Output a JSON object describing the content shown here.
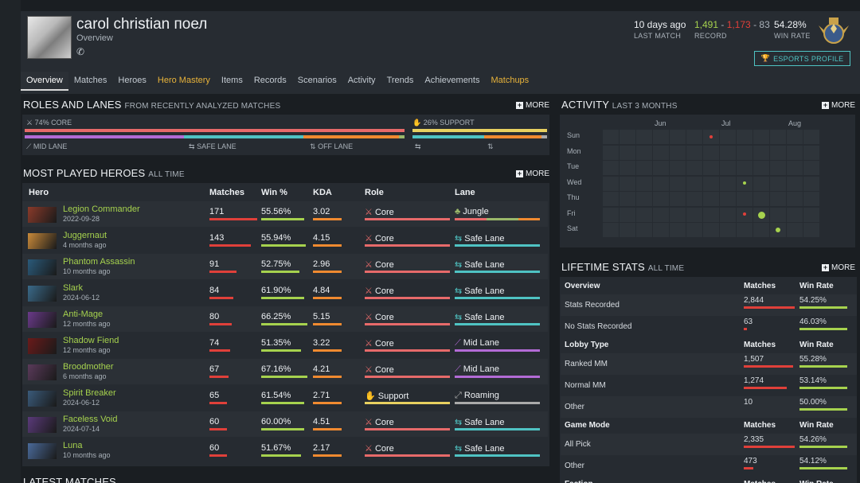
{
  "player": {
    "name": "carol christian поел",
    "subtitle": "Overview"
  },
  "stats": {
    "last_match": {
      "value": "10 days ago",
      "label": "LAST MATCH"
    },
    "record": {
      "wins": "1,491",
      "losses": "1,173",
      "abandons": "83",
      "label": "RECORD"
    },
    "win_rate": {
      "value": "54.28%",
      "label": "WIN RATE"
    }
  },
  "esports_label": "ESPORTS PROFILE",
  "nav": [
    "Overview",
    "Matches",
    "Heroes",
    "Hero Mastery",
    "Items",
    "Records",
    "Scenarios",
    "Activity",
    "Trends",
    "Achievements",
    "Matchups"
  ],
  "roles": {
    "title": "ROLES AND LANES",
    "subtitle": "FROM RECENTLY ANALYZED MATCHES",
    "more": "MORE",
    "core_label": "74% CORE",
    "support_label": "26% SUPPORT",
    "lanes": [
      "MID LANE",
      "SAFE LANE",
      "OFF LANE"
    ]
  },
  "heroes_section": {
    "title": "MOST PLAYED HEROES",
    "subtitle": "ALL TIME",
    "more": "MORE",
    "columns": [
      "Hero",
      "Matches",
      "Win %",
      "KDA",
      "Role",
      "Lane"
    ]
  },
  "heroes": [
    {
      "name": "Legion Commander",
      "sub": "2022-09-28",
      "matches": "171",
      "win": "55.56%",
      "kda": "3.02",
      "role": "Core",
      "lane": "Jungle"
    },
    {
      "name": "Juggernaut",
      "sub": "4 months ago",
      "matches": "143",
      "win": "55.94%",
      "kda": "4.15",
      "role": "Core",
      "lane": "Safe Lane"
    },
    {
      "name": "Phantom Assassin",
      "sub": "10 months ago",
      "matches": "91",
      "win": "52.75%",
      "kda": "2.96",
      "role": "Core",
      "lane": "Safe Lane"
    },
    {
      "name": "Slark",
      "sub": "2024-06-12",
      "matches": "84",
      "win": "61.90%",
      "kda": "4.84",
      "role": "Core",
      "lane": "Safe Lane"
    },
    {
      "name": "Anti-Mage",
      "sub": "12 months ago",
      "matches": "80",
      "win": "66.25%",
      "kda": "5.15",
      "role": "Core",
      "lane": "Safe Lane"
    },
    {
      "name": "Shadow Fiend",
      "sub": "12 months ago",
      "matches": "74",
      "win": "51.35%",
      "kda": "3.22",
      "role": "Core",
      "lane": "Mid Lane"
    },
    {
      "name": "Broodmother",
      "sub": "6 months ago",
      "matches": "67",
      "win": "67.16%",
      "kda": "4.21",
      "role": "Core",
      "lane": "Mid Lane"
    },
    {
      "name": "Spirit Breaker",
      "sub": "2024-06-12",
      "matches": "65",
      "win": "61.54%",
      "kda": "2.71",
      "role": "Support",
      "lane": "Roaming"
    },
    {
      "name": "Faceless Void",
      "sub": "2024-07-14",
      "matches": "60",
      "win": "60.00%",
      "kda": "4.51",
      "role": "Core",
      "lane": "Safe Lane"
    },
    {
      "name": "Luna",
      "sub": "10 months ago",
      "matches": "60",
      "win": "51.67%",
      "kda": "2.17",
      "role": "Core",
      "lane": "Safe Lane"
    }
  ],
  "latest_title": "LATEST MATCHES",
  "activity": {
    "title": "ACTIVITY",
    "subtitle": "LAST 3 MONTHS",
    "more": "MORE",
    "months": [
      "Jun",
      "Jul",
      "Aug"
    ],
    "days": [
      "Sun",
      "Mon",
      "Tue",
      "Wed",
      "Thu",
      "Fri",
      "Sat"
    ]
  },
  "lifetime": {
    "title": "LIFETIME STATS",
    "subtitle": "ALL TIME",
    "more": "MORE",
    "groups": [
      {
        "header": "Overview",
        "col1": "Matches",
        "col2": "Win Rate",
        "rows": [
          {
            "label": "Stats Recorded",
            "matches": "2,844",
            "win": "54.25%"
          },
          {
            "label": "No Stats Recorded",
            "matches": "63",
            "win": "46.03%"
          }
        ]
      },
      {
        "header": "Lobby Type",
        "col1": "Matches",
        "col2": "Win Rate",
        "rows": [
          {
            "label": "Ranked MM",
            "matches": "1,507",
            "win": "55.28%"
          },
          {
            "label": "Normal MM",
            "matches": "1,274",
            "win": "53.14%"
          },
          {
            "label": "Other",
            "matches": "10",
            "win": "50.00%"
          }
        ]
      },
      {
        "header": "Game Mode",
        "col1": "Matches",
        "col2": "Win Rate",
        "rows": [
          {
            "label": "All Pick",
            "matches": "2,335",
            "win": "54.26%"
          },
          {
            "label": "Other",
            "matches": "473",
            "win": "54.12%"
          }
        ]
      },
      {
        "header": "Faction",
        "col1": "Matches",
        "col2": "Win Rate",
        "rows": []
      }
    ]
  },
  "colors": {
    "accent_green": "#a6d24e",
    "accent_red": "#e0403a",
    "gold": "#e8b33a",
    "teal": "#4fc3c3"
  }
}
